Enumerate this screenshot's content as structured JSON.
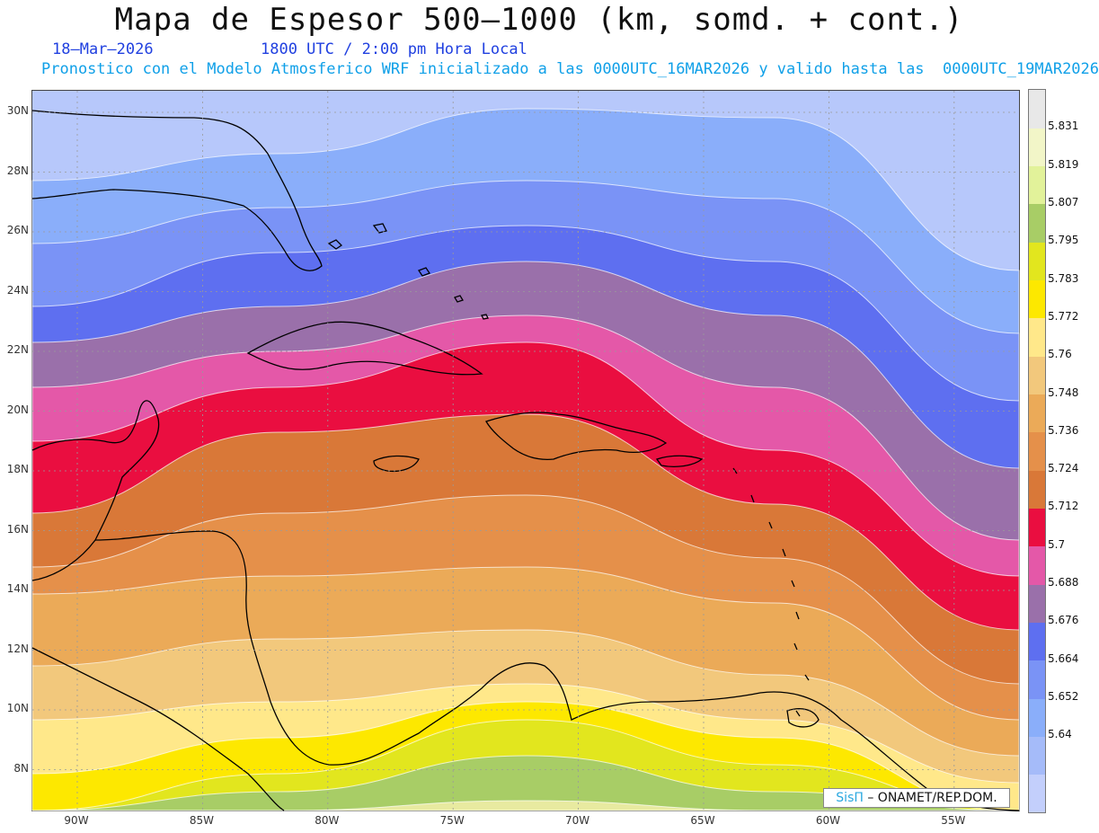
{
  "header": {
    "title": "Mapa de Espesor 500–1000 (km, somd. + cont.)",
    "date": "18–Mar–2026",
    "time": "1800 UTC / 2:00 pm Hora Local",
    "model_line": "Pronostico con el Modelo Atmosferico WRF inicializado a las 0000UTC_16MAR2026 y valido hasta las  0000UTC_19MAR2026"
  },
  "map": {
    "lat_labels": [
      "30N",
      "28N",
      "26N",
      "24N",
      "22N",
      "20N",
      "18N",
      "16N",
      "14N",
      "12N",
      "10N",
      "8N"
    ],
    "lon_labels": [
      "90W",
      "85W",
      "80W",
      "75W",
      "70W",
      "65W",
      "60W",
      "55W"
    ],
    "bands_from_top": [
      "#b7c8fb",
      "#8aaefa",
      "#7a93f6",
      "#5e6ff0",
      "#9a70aa",
      "#e458a8",
      "#ea0e40",
      "#d97838",
      "#e5904a",
      "#ebaa58",
      "#f2c87c",
      "#ffe88a",
      "#fde800",
      "#e2e61e",
      "#a8cd66",
      "#e8eaa0"
    ]
  },
  "colorbar": {
    "levels": [
      "5.64",
      "5.652",
      "5.664",
      "5.676",
      "5.688",
      "5.7",
      "5.712",
      "5.724",
      "5.736",
      "5.748",
      "5.76",
      "5.772",
      "5.783",
      "5.795",
      "5.807",
      "5.819",
      "5.831"
    ],
    "colors_bottom_to_top": [
      "#c3cffc",
      "#a5bbf9",
      "#8aaefa",
      "#7a93f6",
      "#5e6ff0",
      "#9a70aa",
      "#e458a8",
      "#ea0e40",
      "#d97838",
      "#e5904a",
      "#ebaa58",
      "#f2c87c",
      "#ffe88a",
      "#fde800",
      "#e2e61e",
      "#a8cd66",
      "#e2f29a",
      "#f2f6c8",
      "#e8e8e8"
    ]
  },
  "credit": {
    "logo": "SisΠ",
    "text": " – ONAMET/REP.DOM."
  }
}
